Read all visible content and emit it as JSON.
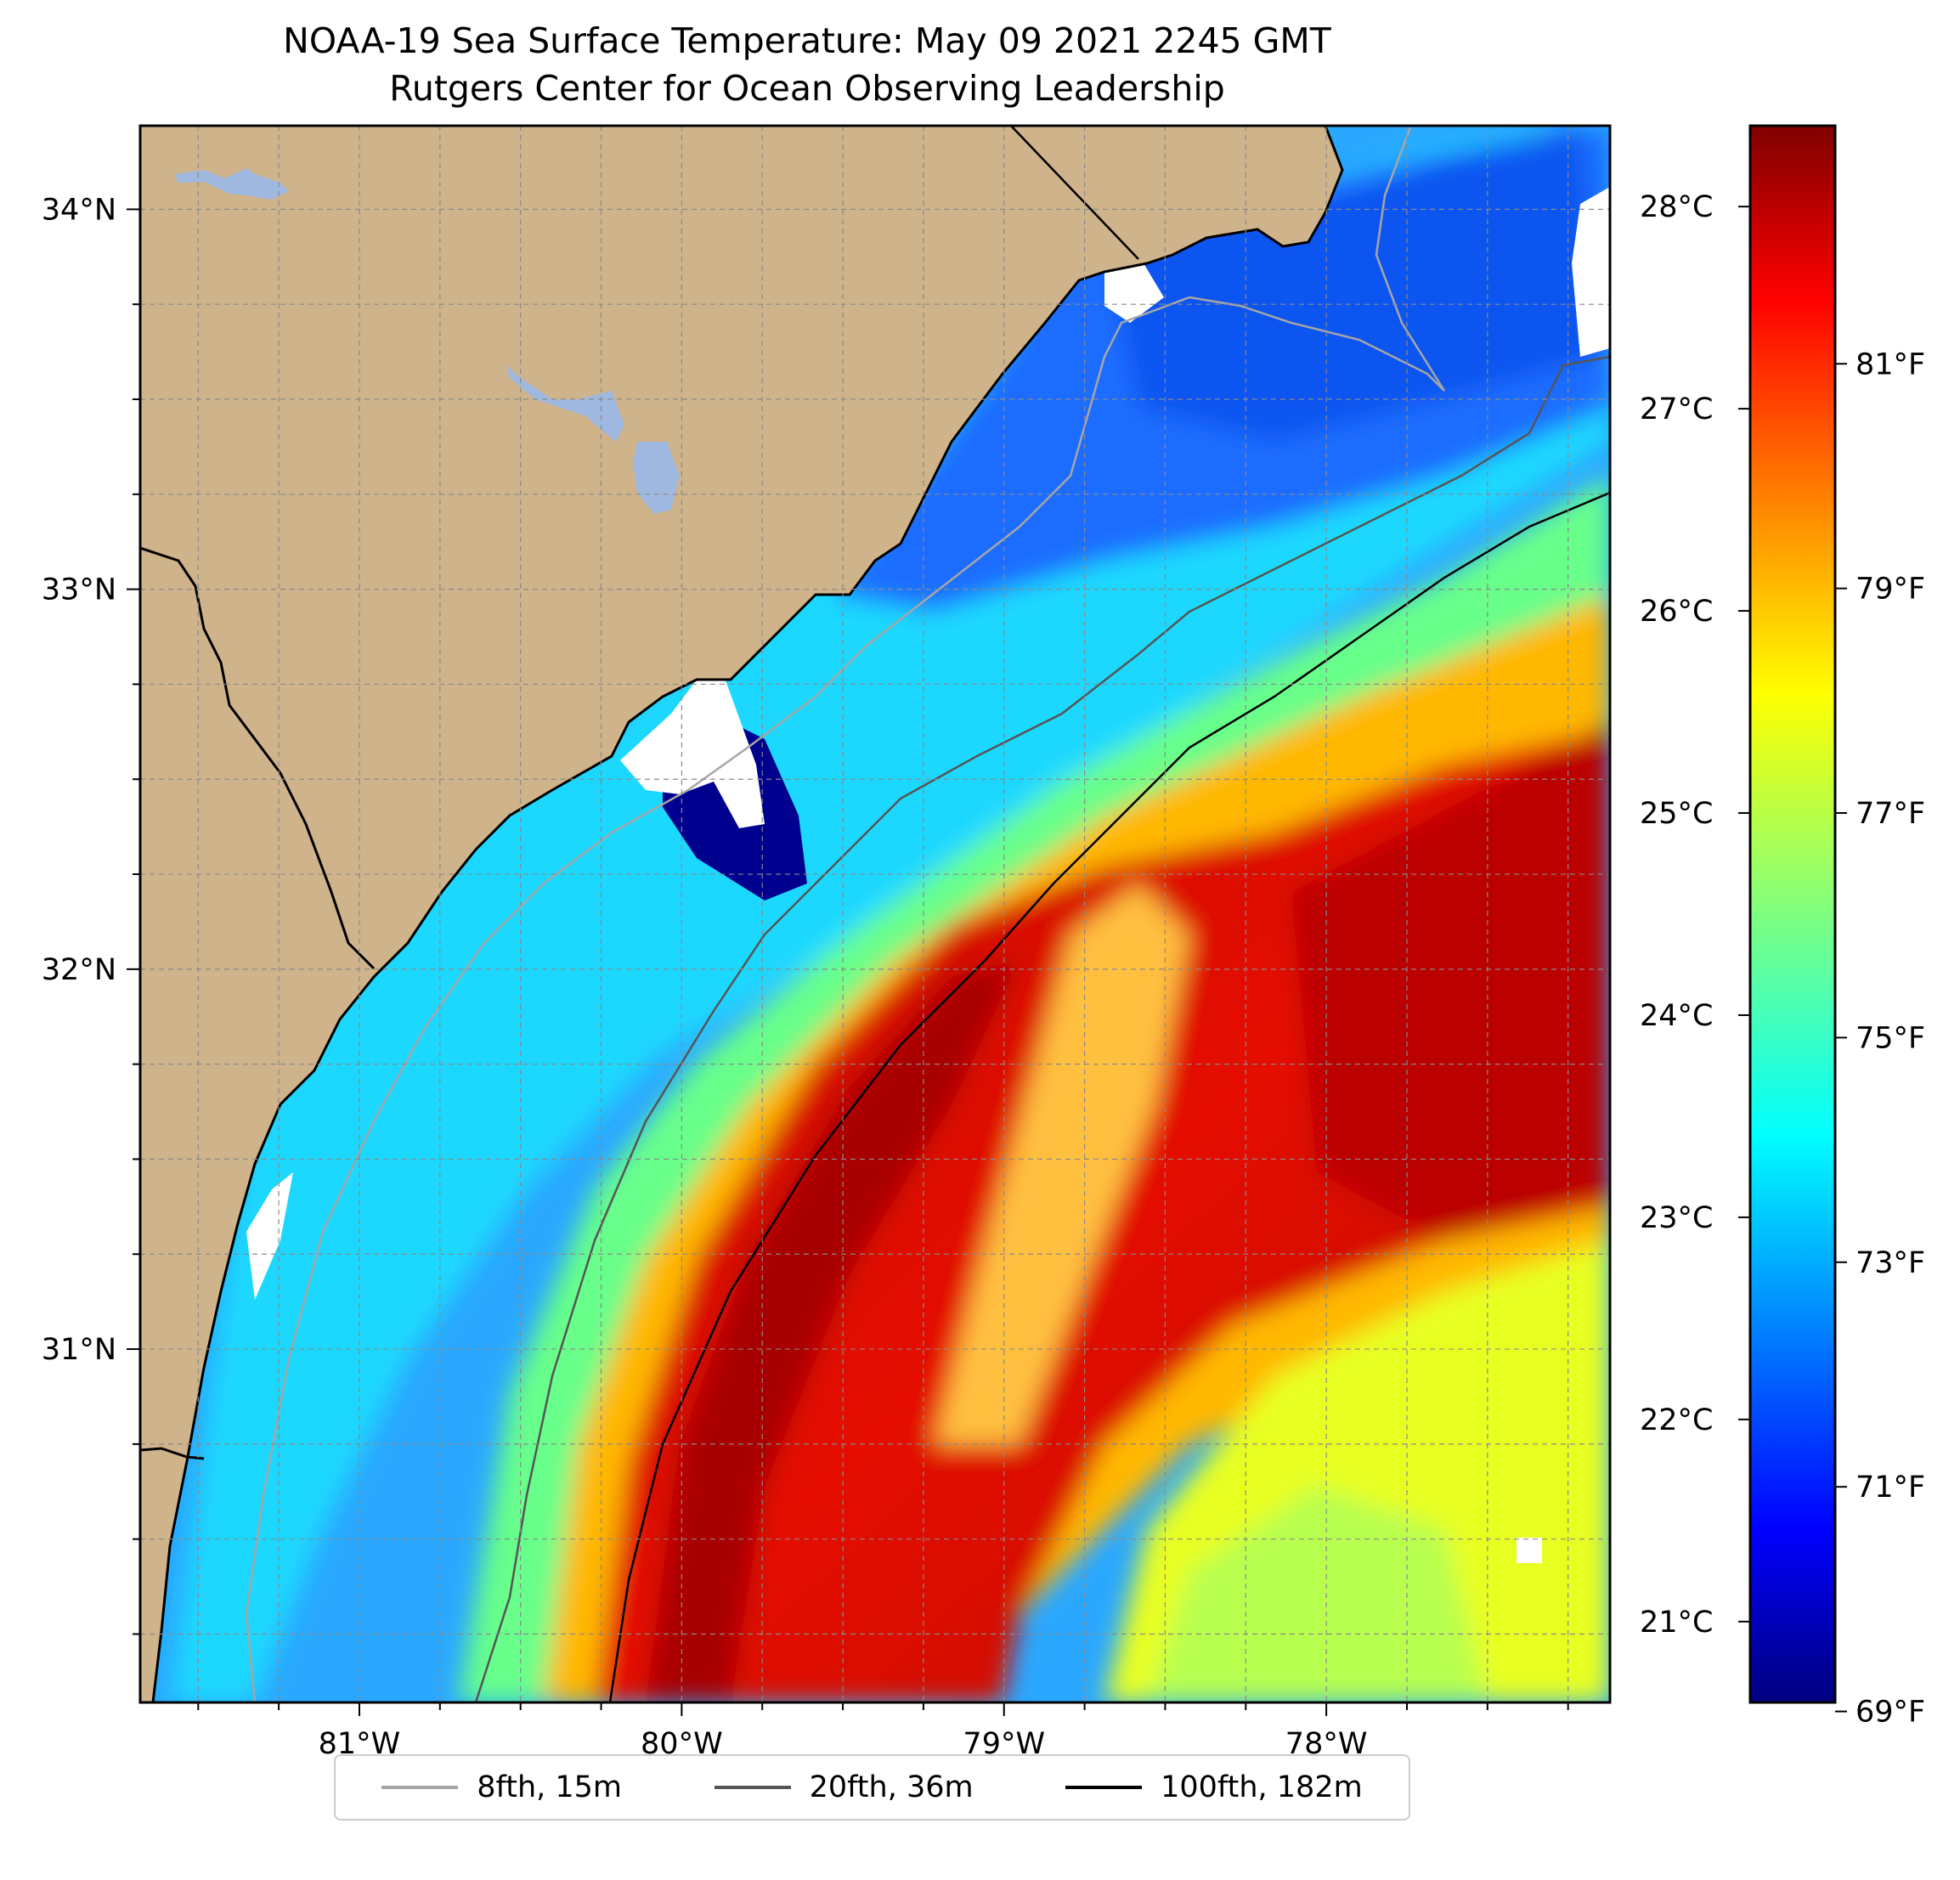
{
  "title": {
    "line1": "NOAA-19 Sea Surface Temperature: May 09 2021 2245 GMT",
    "line2": "Rutgers Center for Ocean Observing Leadership"
  },
  "map": {
    "lon_range": [
      -81.68,
      -77.12
    ],
    "lat_range": [
      30.07,
      34.22
    ],
    "lon_ticks": [
      {
        "value": -81,
        "label": "81°W"
      },
      {
        "value": -80,
        "label": "80°W"
      },
      {
        "value": -79,
        "label": "79°W"
      },
      {
        "value": -78,
        "label": "78°W"
      }
    ],
    "lat_ticks": [
      {
        "value": 34,
        "label": "34°N"
      },
      {
        "value": 33,
        "label": "33°N"
      },
      {
        "value": 32,
        "label": "32°N"
      },
      {
        "value": 31,
        "label": "31°N"
      }
    ],
    "gridlines": "dashed",
    "colors": {
      "land": "#cfb38b",
      "lakes": "#9fb8e0",
      "no_data": "#ffffff"
    }
  },
  "colorbar": {
    "colormap": "jet",
    "celsius_labels": [
      "28°C",
      "27°C",
      "26°C",
      "25°C",
      "24°C",
      "23°C",
      "22°C",
      "21°C"
    ],
    "celsius_values": [
      28,
      27,
      26,
      25,
      24,
      23,
      22,
      21
    ],
    "fahrenheit_labels": [
      "81°F",
      "79°F",
      "77°F",
      "75°F",
      "73°F",
      "71°F",
      "69°F"
    ],
    "fahrenheit_values": [
      81,
      79,
      77,
      75,
      73,
      71,
      69
    ],
    "range_c": [
      20.6,
      28.4
    ]
  },
  "legend": {
    "items": [
      {
        "label": "8fth, 15m",
        "color": "#a6a6a6"
      },
      {
        "label": "20fth, 36m",
        "color": "#555555"
      },
      {
        "label": "100fth, 182m",
        "color": "#000000"
      }
    ]
  }
}
